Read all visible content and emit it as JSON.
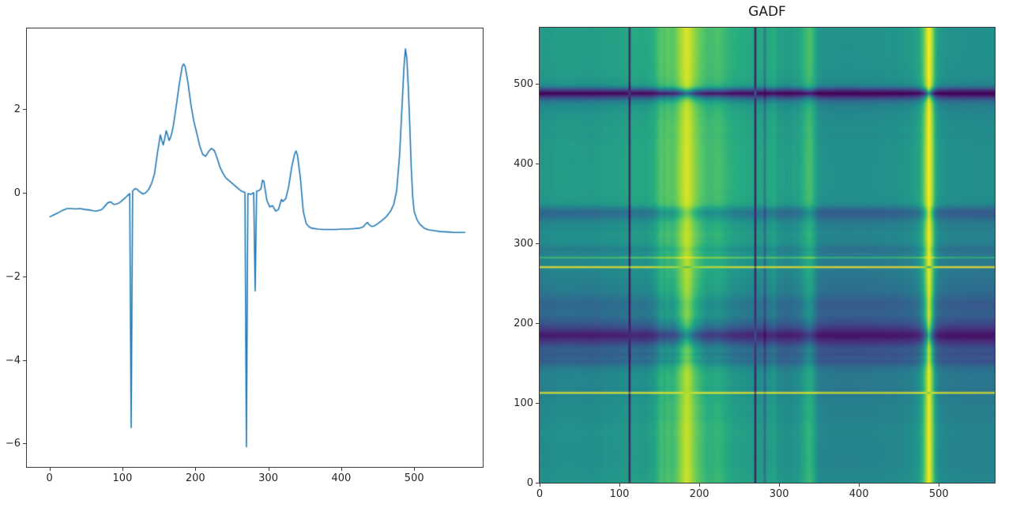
{
  "figure": {
    "background": "#ffffff"
  },
  "chart_data": [
    {
      "type": "line",
      "title": "",
      "line_color": "#1f77b4",
      "xlim": [
        -31,
        594
      ],
      "ylim": [
        -6.56,
        3.93
      ],
      "xticks": [
        0,
        100,
        200,
        300,
        400,
        500
      ],
      "yticks": [
        2,
        0,
        -2,
        -4,
        -6
      ],
      "grid": false,
      "x": [
        0,
        6,
        12,
        18,
        24,
        30,
        36,
        42,
        48,
        54,
        60,
        64,
        68,
        72,
        76,
        80,
        84,
        88,
        92,
        96,
        100,
        104,
        108,
        110,
        112,
        114,
        116,
        118,
        120,
        124,
        128,
        132,
        136,
        140,
        144,
        148,
        152,
        154,
        156,
        158,
        160,
        162,
        164,
        166,
        168,
        170,
        174,
        178,
        182,
        184,
        186,
        190,
        194,
        198,
        202,
        206,
        210,
        214,
        218,
        222,
        226,
        230,
        234,
        238,
        242,
        248,
        254,
        260,
        264,
        268,
        270,
        272,
        276,
        280,
        282,
        284,
        288,
        290,
        292,
        294,
        296,
        298,
        302,
        306,
        310,
        314,
        316,
        318,
        320,
        324,
        328,
        332,
        336,
        338,
        340,
        344,
        348,
        352,
        356,
        360,
        368,
        376,
        384,
        392,
        400,
        408,
        416,
        424,
        430,
        434,
        436,
        438,
        442,
        446,
        450,
        456,
        462,
        468,
        472,
        476,
        480,
        484,
        486,
        488,
        490,
        492,
        494,
        496,
        498,
        500,
        504,
        508,
        514,
        520,
        528,
        536,
        546,
        556,
        564,
        570
      ],
      "y": [
        -0.58,
        -0.53,
        -0.48,
        -0.42,
        -0.38,
        -0.38,
        -0.39,
        -0.38,
        -0.4,
        -0.41,
        -0.43,
        -0.44,
        -0.42,
        -0.4,
        -0.32,
        -0.24,
        -0.22,
        -0.28,
        -0.27,
        -0.24,
        -0.18,
        -0.12,
        -0.05,
        -0.02,
        -5.62,
        0.04,
        0.08,
        0.1,
        0.08,
        0.02,
        -0.03,
        0.0,
        0.08,
        0.22,
        0.45,
        0.95,
        1.38,
        1.25,
        1.14,
        1.3,
        1.48,
        1.38,
        1.25,
        1.32,
        1.45,
        1.62,
        2.1,
        2.6,
        3.02,
        3.08,
        3.02,
        2.62,
        2.1,
        1.7,
        1.42,
        1.12,
        0.92,
        0.87,
        0.98,
        1.06,
        1.01,
        0.82,
        0.6,
        0.46,
        0.35,
        0.26,
        0.17,
        0.08,
        0.03,
        0.01,
        -6.08,
        -0.02,
        -0.04,
        0.0,
        -2.35,
        0.03,
        0.06,
        0.1,
        0.3,
        0.27,
        0.04,
        -0.18,
        -0.34,
        -0.31,
        -0.44,
        -0.4,
        -0.28,
        -0.16,
        -0.21,
        -0.14,
        0.15,
        0.6,
        0.92,
        1.0,
        0.9,
        0.35,
        -0.45,
        -0.74,
        -0.82,
        -0.85,
        -0.87,
        -0.88,
        -0.88,
        -0.88,
        -0.87,
        -0.87,
        -0.86,
        -0.85,
        -0.82,
        -0.74,
        -0.71,
        -0.76,
        -0.81,
        -0.79,
        -0.74,
        -0.66,
        -0.57,
        -0.43,
        -0.28,
        0.05,
        0.9,
        2.3,
        3.0,
        3.44,
        3.2,
        2.5,
        1.6,
        0.6,
        -0.1,
        -0.45,
        -0.65,
        -0.76,
        -0.85,
        -0.89,
        -0.91,
        -0.93,
        -0.94,
        -0.95,
        -0.95,
        -0.95
      ]
    },
    {
      "type": "heatmap",
      "subtype": "gramian-angular-difference-field",
      "title": "GADF",
      "colormap": "viridis",
      "source_series_index": 0,
      "extent": [
        0,
        570
      ],
      "sample_step": 2,
      "xticks": [
        0,
        100,
        200,
        300,
        400,
        500
      ],
      "yticks": [
        0,
        100,
        200,
        300,
        400,
        500
      ],
      "value_range": [
        -1,
        1
      ],
      "viridis_stops": [
        "#440154",
        "#472c7a",
        "#3b518b",
        "#2c718e",
        "#21918c",
        "#27ad81",
        "#5cc863",
        "#aadc32",
        "#fde725"
      ]
    }
  ]
}
